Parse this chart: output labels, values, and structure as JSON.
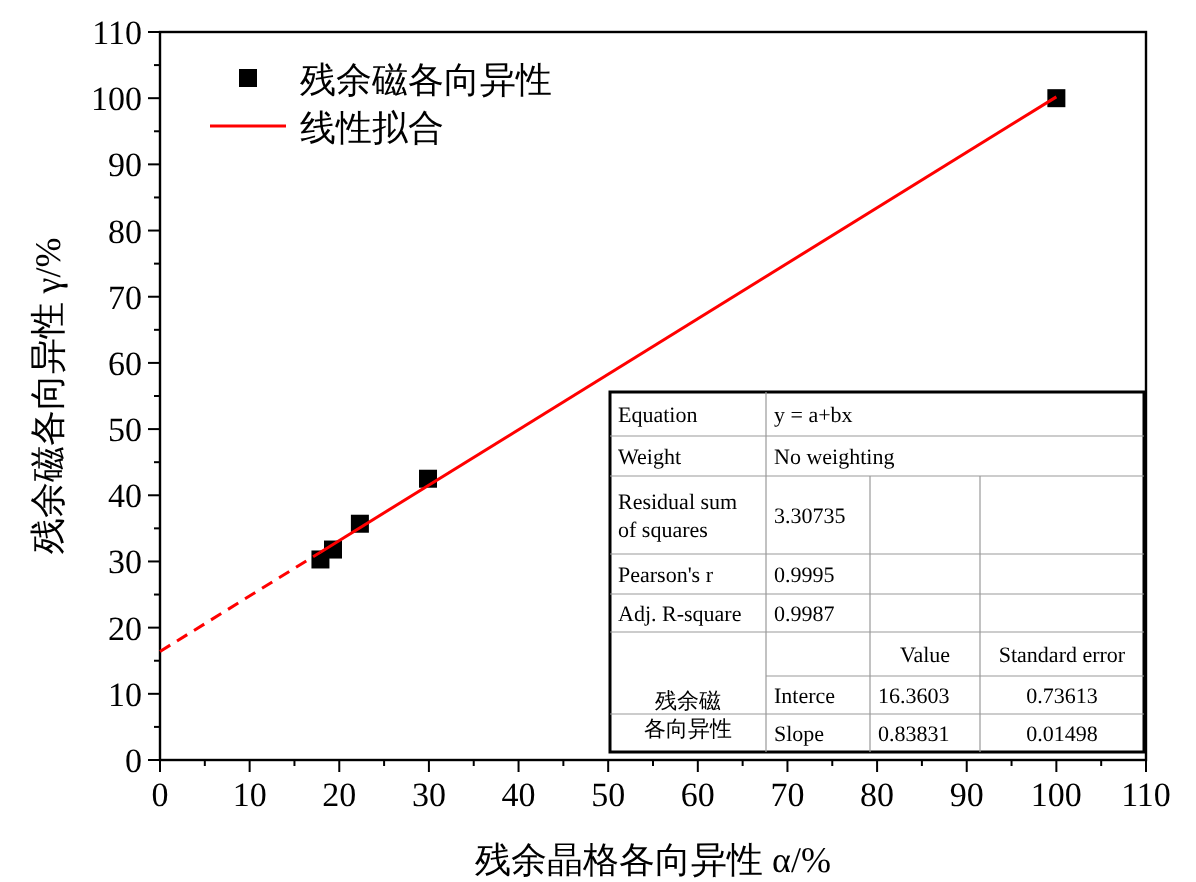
{
  "chart_data": {
    "type": "scatter",
    "xlabel": "残余晶格各向异性 α/%",
    "ylabel": "残余磁各向异性 γ/%",
    "xlim": [
      0,
      110
    ],
    "ylim": [
      0,
      110
    ],
    "xticks": [
      0,
      10,
      20,
      30,
      40,
      50,
      60,
      70,
      80,
      90,
      100,
      110
    ],
    "yticks": [
      0,
      10,
      20,
      30,
      40,
      50,
      60,
      70,
      80,
      90,
      100,
      110
    ],
    "legend": "top left",
    "series": [
      {
        "name": "残余磁各向异性",
        "marker": "square",
        "color": "#000000",
        "x": [
          17.9,
          19.3,
          22.3,
          29.9,
          100
        ],
        "values": [
          30.3,
          31.8,
          35.7,
          42.5,
          100
        ]
      },
      {
        "type": "line",
        "line_style": "dashed",
        "color": "#ff0000",
        "x": [
          0,
          17.9
        ],
        "values": [
          16.4,
          31.4
        ]
      },
      {
        "name": "线性拟合",
        "type": "line",
        "line_style": "solid",
        "color": "#ff0000",
        "x": [
          17.9,
          100
        ],
        "values": [
          31.4,
          100.2
        ]
      }
    ],
    "annotations": [
      "Equation",
      "y = a+bx",
      "Weight",
      "No weighting",
      "Residual sum of squares",
      "3.30735",
      "Pearson's r",
      "0.9995",
      "Adj. R-square",
      "0.9987",
      "Value",
      "Standard error",
      "残余磁各向异性",
      "Interce",
      "16.3603",
      "0.73613",
      "Slope",
      "0.83831",
      "0.01498"
    ]
  }
}
